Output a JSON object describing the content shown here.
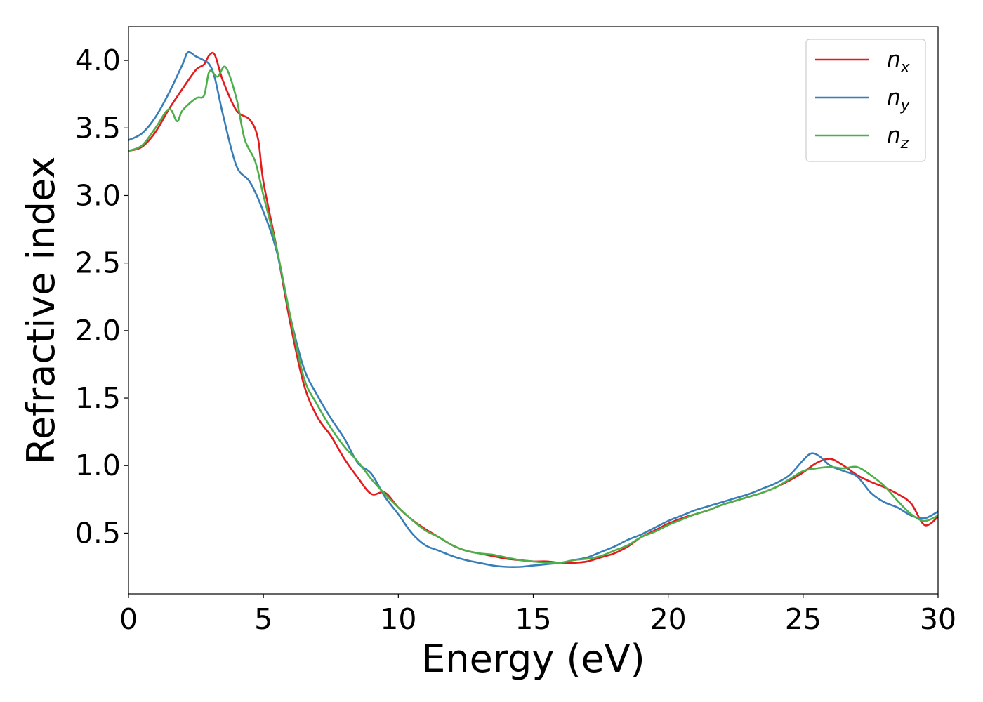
{
  "chart_data": {
    "type": "line",
    "xlabel": "Energy (eV)",
    "ylabel": "Refractive index",
    "xlim": [
      0,
      30
    ],
    "ylim": [
      0.05,
      4.25
    ],
    "x_ticks": [
      0,
      5,
      10,
      15,
      20,
      25,
      30
    ],
    "y_ticks": [
      0.5,
      1.0,
      1.5,
      2.0,
      2.5,
      3.0,
      3.5,
      4.0
    ],
    "x_tick_labels": [
      "0",
      "5",
      "10",
      "15",
      "20",
      "25",
      "30"
    ],
    "y_tick_labels": [
      "0.5",
      "1.0",
      "1.5",
      "2.0",
      "2.5",
      "3.0",
      "3.5",
      "4.0"
    ],
    "grid": false,
    "legend_position": "top-right",
    "series": [
      {
        "name": "n_x",
        "label_base": "n",
        "label_sub": "x",
        "color": "#e41a1c",
        "points": [
          [
            0,
            3.33
          ],
          [
            0.5,
            3.36
          ],
          [
            1.0,
            3.47
          ],
          [
            1.5,
            3.64
          ],
          [
            2.0,
            3.79
          ],
          [
            2.5,
            3.93
          ],
          [
            2.8,
            3.97
          ],
          [
            3.0,
            4.04
          ],
          [
            3.2,
            4.04
          ],
          [
            3.5,
            3.85
          ],
          [
            4.0,
            3.63
          ],
          [
            4.5,
            3.56
          ],
          [
            4.8,
            3.42
          ],
          [
            5.0,
            3.1
          ],
          [
            5.5,
            2.6
          ],
          [
            6.0,
            2.05
          ],
          [
            6.5,
            1.6
          ],
          [
            7.0,
            1.36
          ],
          [
            7.5,
            1.22
          ],
          [
            8.0,
            1.05
          ],
          [
            8.5,
            0.91
          ],
          [
            9.0,
            0.79
          ],
          [
            9.5,
            0.8
          ],
          [
            10.0,
            0.69
          ],
          [
            10.5,
            0.6
          ],
          [
            11.0,
            0.53
          ],
          [
            11.5,
            0.47
          ],
          [
            12.0,
            0.41
          ],
          [
            12.5,
            0.37
          ],
          [
            13.0,
            0.35
          ],
          [
            13.5,
            0.33
          ],
          [
            14.0,
            0.31
          ],
          [
            14.5,
            0.3
          ],
          [
            15.0,
            0.29
          ],
          [
            15.5,
            0.29
          ],
          [
            16.0,
            0.28
          ],
          [
            16.5,
            0.28
          ],
          [
            17.0,
            0.29
          ],
          [
            17.5,
            0.32
          ],
          [
            18.0,
            0.35
          ],
          [
            18.5,
            0.4
          ],
          [
            19.0,
            0.47
          ],
          [
            19.5,
            0.52
          ],
          [
            20.0,
            0.57
          ],
          [
            20.5,
            0.61
          ],
          [
            21.0,
            0.64
          ],
          [
            21.5,
            0.67
          ],
          [
            22.0,
            0.71
          ],
          [
            22.5,
            0.74
          ],
          [
            23.0,
            0.77
          ],
          [
            23.5,
            0.8
          ],
          [
            24.0,
            0.84
          ],
          [
            24.5,
            0.89
          ],
          [
            25.0,
            0.95
          ],
          [
            25.5,
            1.02
          ],
          [
            26.0,
            1.05
          ],
          [
            26.5,
            1.0
          ],
          [
            27.0,
            0.93
          ],
          [
            27.5,
            0.88
          ],
          [
            28.0,
            0.84
          ],
          [
            28.5,
            0.79
          ],
          [
            29.0,
            0.72
          ],
          [
            29.5,
            0.56
          ],
          [
            30.0,
            0.62
          ]
        ]
      },
      {
        "name": "n_y",
        "label_base": "n",
        "label_sub": "y",
        "color": "#377eb8",
        "points": [
          [
            0,
            3.41
          ],
          [
            0.5,
            3.46
          ],
          [
            1.0,
            3.58
          ],
          [
            1.5,
            3.76
          ],
          [
            2.0,
            3.97
          ],
          [
            2.2,
            4.06
          ],
          [
            2.5,
            4.03
          ],
          [
            2.8,
            4.0
          ],
          [
            3.0,
            3.97
          ],
          [
            3.2,
            3.87
          ],
          [
            3.5,
            3.6
          ],
          [
            4.0,
            3.22
          ],
          [
            4.5,
            3.1
          ],
          [
            5.0,
            2.88
          ],
          [
            5.5,
            2.58
          ],
          [
            6.0,
            2.1
          ],
          [
            6.5,
            1.72
          ],
          [
            7.0,
            1.52
          ],
          [
            7.5,
            1.35
          ],
          [
            8.0,
            1.2
          ],
          [
            8.5,
            1.02
          ],
          [
            9.0,
            0.94
          ],
          [
            9.5,
            0.77
          ],
          [
            10.0,
            0.64
          ],
          [
            10.5,
            0.5
          ],
          [
            11.0,
            0.41
          ],
          [
            11.5,
            0.37
          ],
          [
            12.0,
            0.33
          ],
          [
            12.5,
            0.3
          ],
          [
            13.0,
            0.28
          ],
          [
            13.5,
            0.26
          ],
          [
            14.0,
            0.25
          ],
          [
            14.5,
            0.25
          ],
          [
            15.0,
            0.26
          ],
          [
            15.5,
            0.27
          ],
          [
            16.0,
            0.28
          ],
          [
            16.5,
            0.3
          ],
          [
            17.0,
            0.32
          ],
          [
            17.5,
            0.36
          ],
          [
            18.0,
            0.4
          ],
          [
            18.5,
            0.45
          ],
          [
            19.0,
            0.49
          ],
          [
            19.5,
            0.54
          ],
          [
            20.0,
            0.59
          ],
          [
            20.5,
            0.63
          ],
          [
            21.0,
            0.67
          ],
          [
            21.5,
            0.7
          ],
          [
            22.0,
            0.73
          ],
          [
            22.5,
            0.76
          ],
          [
            23.0,
            0.79
          ],
          [
            23.5,
            0.83
          ],
          [
            24.0,
            0.87
          ],
          [
            24.5,
            0.93
          ],
          [
            25.0,
            1.04
          ],
          [
            25.3,
            1.09
          ],
          [
            25.6,
            1.07
          ],
          [
            26.0,
            1.0
          ],
          [
            26.5,
            0.96
          ],
          [
            27.0,
            0.92
          ],
          [
            27.5,
            0.8
          ],
          [
            28.0,
            0.73
          ],
          [
            28.5,
            0.69
          ],
          [
            29.0,
            0.63
          ],
          [
            29.5,
            0.61
          ],
          [
            30.0,
            0.66
          ]
        ]
      },
      {
        "name": "n_z",
        "label_base": "n",
        "label_sub": "z",
        "color": "#4daf4a",
        "points": [
          [
            0,
            3.33
          ],
          [
            0.5,
            3.37
          ],
          [
            1.0,
            3.5
          ],
          [
            1.5,
            3.64
          ],
          [
            1.8,
            3.55
          ],
          [
            2.0,
            3.63
          ],
          [
            2.5,
            3.72
          ],
          [
            2.8,
            3.74
          ],
          [
            3.0,
            3.92
          ],
          [
            3.3,
            3.88
          ],
          [
            3.6,
            3.95
          ],
          [
            4.0,
            3.72
          ],
          [
            4.3,
            3.42
          ],
          [
            4.7,
            3.25
          ],
          [
            5.0,
            3.0
          ],
          [
            5.5,
            2.6
          ],
          [
            6.0,
            2.1
          ],
          [
            6.5,
            1.65
          ],
          [
            7.0,
            1.45
          ],
          [
            7.5,
            1.28
          ],
          [
            8.0,
            1.14
          ],
          [
            8.5,
            1.03
          ],
          [
            9.0,
            0.9
          ],
          [
            9.5,
            0.79
          ],
          [
            10.0,
            0.69
          ],
          [
            10.5,
            0.6
          ],
          [
            11.0,
            0.52
          ],
          [
            11.5,
            0.47
          ],
          [
            12.0,
            0.41
          ],
          [
            12.5,
            0.37
          ],
          [
            13.0,
            0.35
          ],
          [
            13.5,
            0.34
          ],
          [
            14.0,
            0.32
          ],
          [
            14.5,
            0.3
          ],
          [
            15.0,
            0.29
          ],
          [
            15.5,
            0.28
          ],
          [
            16.0,
            0.28
          ],
          [
            16.5,
            0.3
          ],
          [
            17.0,
            0.31
          ],
          [
            17.5,
            0.33
          ],
          [
            18.0,
            0.37
          ],
          [
            18.5,
            0.41
          ],
          [
            19.0,
            0.47
          ],
          [
            19.5,
            0.51
          ],
          [
            20.0,
            0.56
          ],
          [
            20.5,
            0.6
          ],
          [
            21.0,
            0.64
          ],
          [
            21.5,
            0.67
          ],
          [
            22.0,
            0.71
          ],
          [
            22.5,
            0.74
          ],
          [
            23.0,
            0.77
          ],
          [
            23.5,
            0.8
          ],
          [
            24.0,
            0.84
          ],
          [
            24.5,
            0.9
          ],
          [
            25.0,
            0.96
          ],
          [
            25.5,
            0.98
          ],
          [
            26.0,
            0.99
          ],
          [
            26.5,
            0.98
          ],
          [
            27.0,
            0.99
          ],
          [
            27.5,
            0.93
          ],
          [
            28.0,
            0.85
          ],
          [
            28.5,
            0.74
          ],
          [
            29.0,
            0.64
          ],
          [
            29.5,
            0.59
          ],
          [
            30.0,
            0.63
          ]
        ]
      }
    ]
  }
}
